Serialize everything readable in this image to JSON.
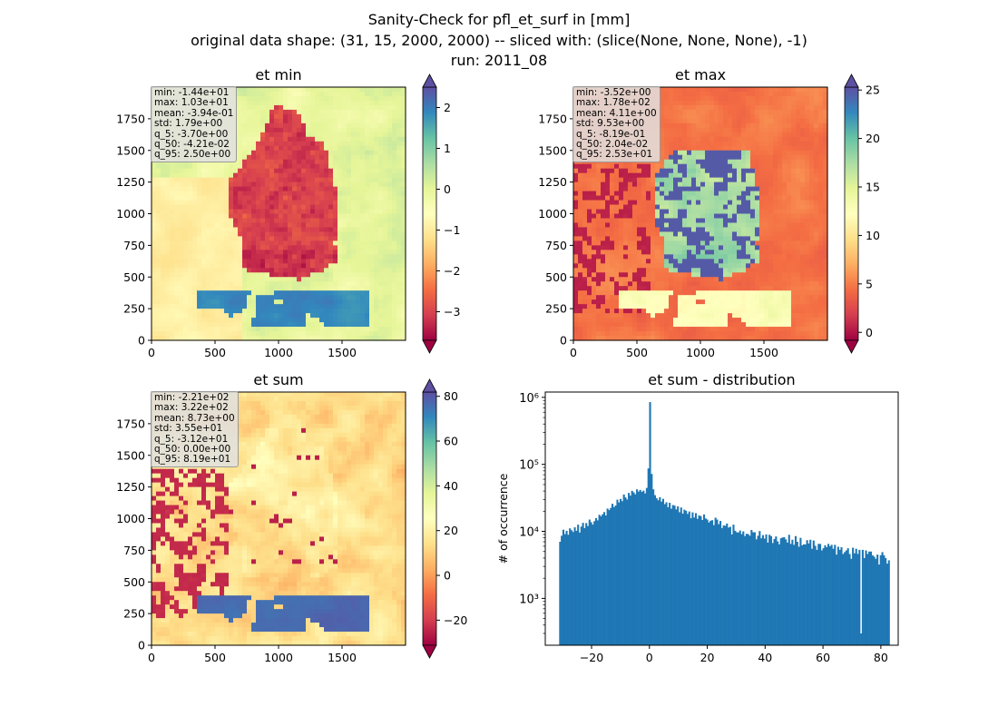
{
  "figure": {
    "title_lines": [
      "Sanity-Check for pfl_et_surf in [mm]",
      "original data shape: (31, 15, 2000, 2000) -- sliced with: (slice(None, None, None), -1)",
      "run: 2011_08"
    ]
  },
  "colormap": {
    "name": "Spectral",
    "stops": [
      "#9e0142",
      "#d53e4f",
      "#f46d43",
      "#fdae61",
      "#fee08b",
      "#ffffbf",
      "#e6f598",
      "#abdda4",
      "#66c2a5",
      "#3288bd",
      "#5e4fa2"
    ]
  },
  "chart_data": [
    {
      "type": "heatmap",
      "title": "et min",
      "xlim": [
        0,
        2000
      ],
      "ylim": [
        0,
        2000
      ],
      "xticks": [
        0,
        500,
        1000,
        1500
      ],
      "yticks": [
        0,
        250,
        500,
        750,
        1000,
        1250,
        1500,
        1750
      ],
      "colorbar": {
        "vmin": -3.7,
        "vmax": 2.5,
        "ticks": [
          -3,
          -2,
          -1,
          0,
          1,
          2
        ],
        "extend": "both"
      },
      "stats": [
        "min: -1.44e+01",
        "max: 1.03e+01",
        "mean: -3.94e-01",
        "std: 1.79e+00",
        "q_5: -3.70e+00",
        "q_50: -4.21e-02",
        "q_95: 2.50e+00"
      ]
    },
    {
      "type": "heatmap",
      "title": "et max",
      "xlim": [
        0,
        2000
      ],
      "ylim": [
        0,
        2000
      ],
      "xticks": [
        0,
        500,
        1000,
        1500
      ],
      "yticks": [
        0,
        250,
        500,
        750,
        1000,
        1250,
        1500,
        1750
      ],
      "colorbar": {
        "vmin": -0.819,
        "vmax": 25.3,
        "ticks": [
          0,
          5,
          10,
          15,
          20,
          25
        ],
        "extend": "both"
      },
      "stats": [
        "min: -3.52e+00",
        "max: 1.78e+02",
        "mean: 4.11e+00",
        "std: 9.53e+00",
        "q_5: -8.19e-01",
        "q_50: 2.04e-02",
        "q_95: 2.53e+01"
      ]
    },
    {
      "type": "heatmap",
      "title": "et sum",
      "xlim": [
        0,
        2000
      ],
      "ylim": [
        0,
        2000
      ],
      "xticks": [
        0,
        500,
        1000,
        1500
      ],
      "yticks": [
        0,
        250,
        500,
        750,
        1000,
        1250,
        1500,
        1750
      ],
      "colorbar": {
        "vmin": -31.2,
        "vmax": 81.9,
        "ticks": [
          -20,
          0,
          20,
          40,
          60,
          80
        ],
        "extend": "both"
      },
      "stats": [
        "min: -2.21e+02",
        "max: 3.22e+02",
        "mean: 8.73e+00",
        "std: 3.55e+01",
        "q_5: -3.12e+01",
        "q_50: 0.00e+00",
        "q_95: 8.19e+01"
      ]
    },
    {
      "type": "bar",
      "title": "et sum - distribution",
      "ylabel": "# of occurrence",
      "xlabel": "",
      "yscale": "log",
      "xlim": [
        -36,
        86
      ],
      "ylim": [
        200,
        1200000
      ],
      "xticks": [
        -20,
        0,
        20,
        40,
        60,
        80
      ],
      "yticks": [
        1000,
        10000,
        100000,
        1000000
      ],
      "ytick_labels": [
        "10³",
        "10⁴",
        "10⁵",
        "10⁶"
      ],
      "color": "#1f77b4",
      "bin_range": [
        -31.2,
        81.9
      ],
      "bin_count": 200,
      "counts": [
        7000,
        8600,
        10600,
        9100,
        10200,
        8900,
        11100,
        10400,
        9800,
        11500,
        10200,
        12600,
        9600,
        11800,
        13400,
        11200,
        13300,
        12000,
        15000,
        13700,
        12600,
        14200,
        15800,
        14600,
        17700,
        16800,
        18000,
        19400,
        17300,
        21900,
        20800,
        22400,
        25800,
        23100,
        24300,
        29700,
        27000,
        30500,
        28200,
        35500,
        32100,
        29900,
        37500,
        34200,
        40300,
        38200,
        35800,
        42400,
        39300,
        41500,
        38800,
        40600,
        36900,
        44500,
        87000,
        850000,
        72000,
        42400,
        34700,
        31200,
        29100,
        32300,
        27800,
        30600,
        25500,
        27200,
        22900,
        26700,
        21800,
        24700,
        24200,
        21300,
        23600,
        19300,
        22700,
        18400,
        21100,
        20300,
        18200,
        19800,
        15700,
        19200,
        16100,
        18700,
        15400,
        17300,
        16900,
        14800,
        17900,
        15600,
        15000,
        13600,
        14400,
        14700,
        12400,
        16000,
        15000,
        12800,
        14300,
        11200,
        12300,
        12100,
        13100,
        11400,
        11700,
        9000,
        12600,
        10200,
        9700,
        9600,
        10300,
        9100,
        10000,
        8500,
        9200,
        9100,
        8600,
        10500,
        9700,
        9700,
        7600,
        8600,
        10100,
        7900,
        8800,
        7800,
        9000,
        6800,
        8900,
        8500,
        6700,
        7700,
        8400,
        7100,
        6400,
        7900,
        8100,
        8200,
        7600,
        6800,
        8900,
        6500,
        7500,
        6300,
        8500,
        7000,
        5900,
        8000,
        6200,
        6400,
        6400,
        7400,
        6600,
        7500,
        5500,
        7300,
        6100,
        5300,
        6500,
        6500,
        5200,
        5600,
        6200,
        5800,
        6500,
        6000,
        6300,
        5500,
        6300,
        4500,
        5900,
        5300,
        5800,
        4600,
        4900,
        5200,
        5600,
        4600,
        3900,
        5700,
        4700,
        5500,
        4600,
        5300,
        300,
        5300,
        4000,
        5200,
        4600,
        5000,
        5000,
        4400,
        4200,
        3900,
        4500,
        3200,
        4400,
        4900,
        4400,
        4000,
        3300,
        3700
      ]
    }
  ]
}
